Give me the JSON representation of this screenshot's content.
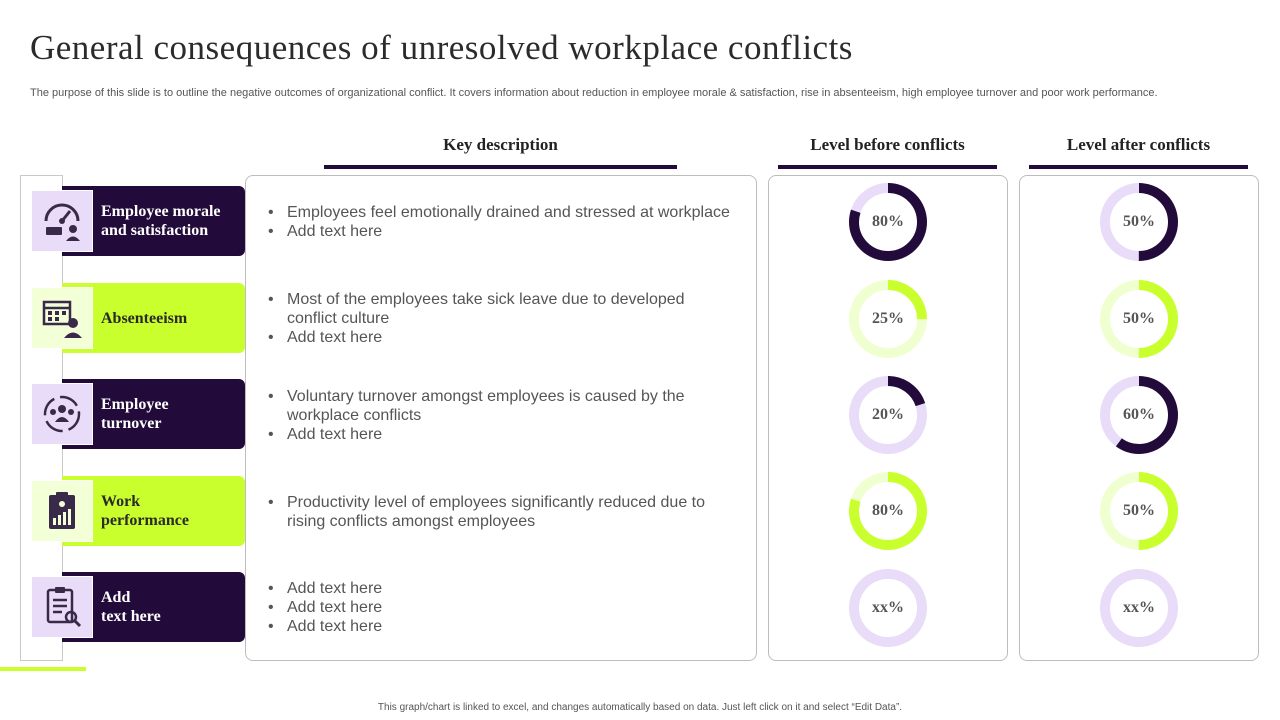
{
  "title": "General consequences of unresolved workplace conflicts",
  "subtitle": "The purpose of this slide is to outline the negative outcomes of organizational conflict. It covers information about reduction in employee morale & satisfaction, rise in absenteeism, high employee turnover and poor work performance.",
  "headers": {
    "key_description": "Key description",
    "level_before": "Level before conflicts",
    "level_after": "Level after conflicts"
  },
  "colors": {
    "dark": "#220b3a",
    "lime": "#c8ff2c",
    "light_purple": "#e8dcf8",
    "light_lime": "#f0ffcf"
  },
  "rows": [
    {
      "label_line1": "Employee morale",
      "label_line2": "and satisfaction",
      "icon": "gauge-user-icon",
      "theme": "dark",
      "bullets": [
        "Employees feel emotionally drained and stressed at workplace",
        "Add text here"
      ],
      "before": {
        "value": 0.8,
        "text": "80%"
      },
      "after": {
        "value": 0.5,
        "text": "50%"
      }
    },
    {
      "label_line1": "Absenteeism",
      "label_line2": "",
      "icon": "calendar-user-icon",
      "theme": "lime",
      "bullets": [
        "Most of the employees take sick leave due to developed conflict culture",
        "Add text here"
      ],
      "before": {
        "value": 0.25,
        "text": "25%"
      },
      "after": {
        "value": 0.5,
        "text": "50%"
      }
    },
    {
      "label_line1": "Employee",
      "label_line2": "turnover",
      "icon": "team-cycle-icon",
      "theme": "dark",
      "bullets": [
        "Voluntary turnover amongst employees is caused by the workplace conflicts",
        "Add text here"
      ],
      "before": {
        "value": 0.2,
        "text": "20%"
      },
      "after": {
        "value": 0.6,
        "text": "60%"
      }
    },
    {
      "label_line1": "Work",
      "label_line2": "performance",
      "icon": "clipboard-chart-icon",
      "theme": "lime",
      "bullets": [
        "Productivity level of employees significantly reduced due to rising conflicts amongst employees"
      ],
      "before": {
        "value": 0.8,
        "text": "80%"
      },
      "after": {
        "value": 0.5,
        "text": "50%"
      }
    },
    {
      "label_line1": "Add",
      "label_line2": "text here",
      "icon": "checklist-search-icon",
      "theme": "dark",
      "bullets": [
        "Add text here",
        "Add text here",
        "Add text here"
      ],
      "before": {
        "value": 0,
        "text": "xx%"
      },
      "after": {
        "value": 0,
        "text": "xx%"
      }
    }
  ],
  "footer": "This graph/chart is linked to excel, and changes automatically based on data. Just left click on it and select “Edit Data”."
}
